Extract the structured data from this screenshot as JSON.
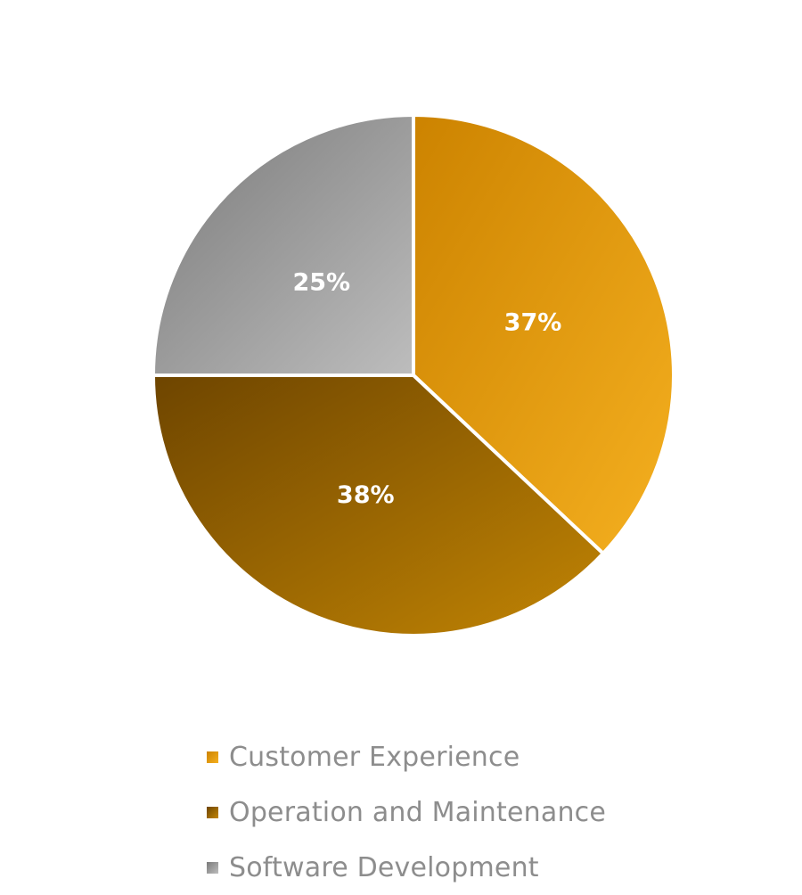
{
  "chart_data": {
    "type": "pie",
    "title": "",
    "legend_position": "bottom",
    "slices": [
      {
        "label": "Customer Experience",
        "value": 37,
        "display": "37%",
        "color": "#e39a0c",
        "gradient": [
          "#cc8300",
          "#f5b020"
        ]
      },
      {
        "label": "Operation and Maintenance",
        "value": 38,
        "display": "38%",
        "color": "#8c5800",
        "gradient": [
          "#6e4500",
          "#c28504"
        ]
      },
      {
        "label": "Software Development",
        "value": 25,
        "display": "25%",
        "color": "#a9a9a9",
        "gradient": [
          "#7a7a7a",
          "#bdbdbd"
        ]
      }
    ]
  }
}
